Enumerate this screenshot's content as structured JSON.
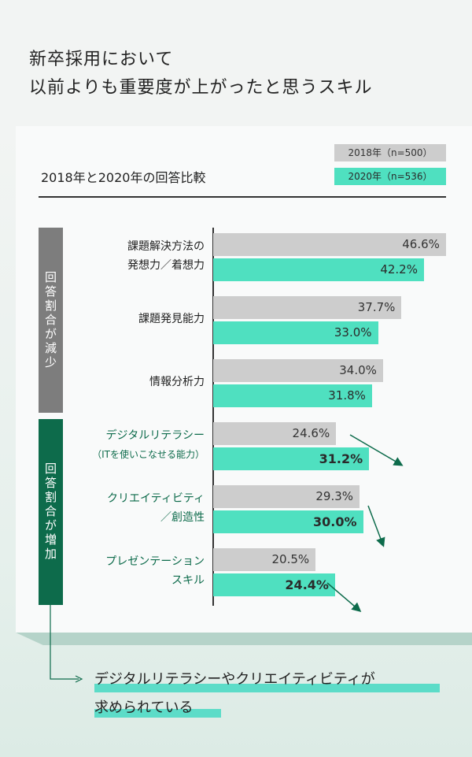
{
  "title": [
    "新卒採用において",
    "以前よりも重要度が上がったと思うスキル"
  ],
  "colors": {
    "y2018": "#cdcdcd",
    "y2020": "#4fe0c0",
    "decrease": "#7d7d7d",
    "increase": "#0d6b4b"
  },
  "chart_data": {
    "type": "bar",
    "title": "2018年と2020年の回答比較",
    "orientation": "horizontal",
    "legend": [
      "2018年（n=500）",
      "2020年（n=536）"
    ],
    "groups": [
      {
        "label": "回答割合が減少",
        "categories": [
          0,
          1,
          2
        ]
      },
      {
        "label": "回答割合が増加",
        "categories": [
          3,
          4,
          5
        ]
      }
    ],
    "categories": [
      [
        "課題解決方法の",
        "発想力／着想力"
      ],
      [
        "課題発見能力"
      ],
      [
        "情報分析力"
      ],
      [
        "デジタルリテラシー",
        "（ITを使いこなせる能力）"
      ],
      [
        "クリエイティビティ",
        "／創造性"
      ],
      [
        "プレゼンテーション",
        "スキル"
      ]
    ],
    "series": [
      {
        "name": "2018年（n=500）",
        "values": [
          46.6,
          37.7,
          34.0,
          24.6,
          29.3,
          20.5
        ],
        "labels": [
          "46.6%",
          "37.7%",
          "34.0%",
          "24.6%",
          "29.3%",
          "20.5%"
        ]
      },
      {
        "name": "2020年（n=536）",
        "values": [
          42.2,
          33.0,
          31.8,
          31.2,
          30.0,
          24.4
        ],
        "labels": [
          "42.2%",
          "33.0%",
          "31.8%",
          "31.2%",
          "30.0%",
          "24.4%"
        ]
      }
    ],
    "xlim": [
      0,
      47
    ]
  },
  "note": [
    "デジタルリテラシーやクリエイティビティが",
    "求められている"
  ]
}
